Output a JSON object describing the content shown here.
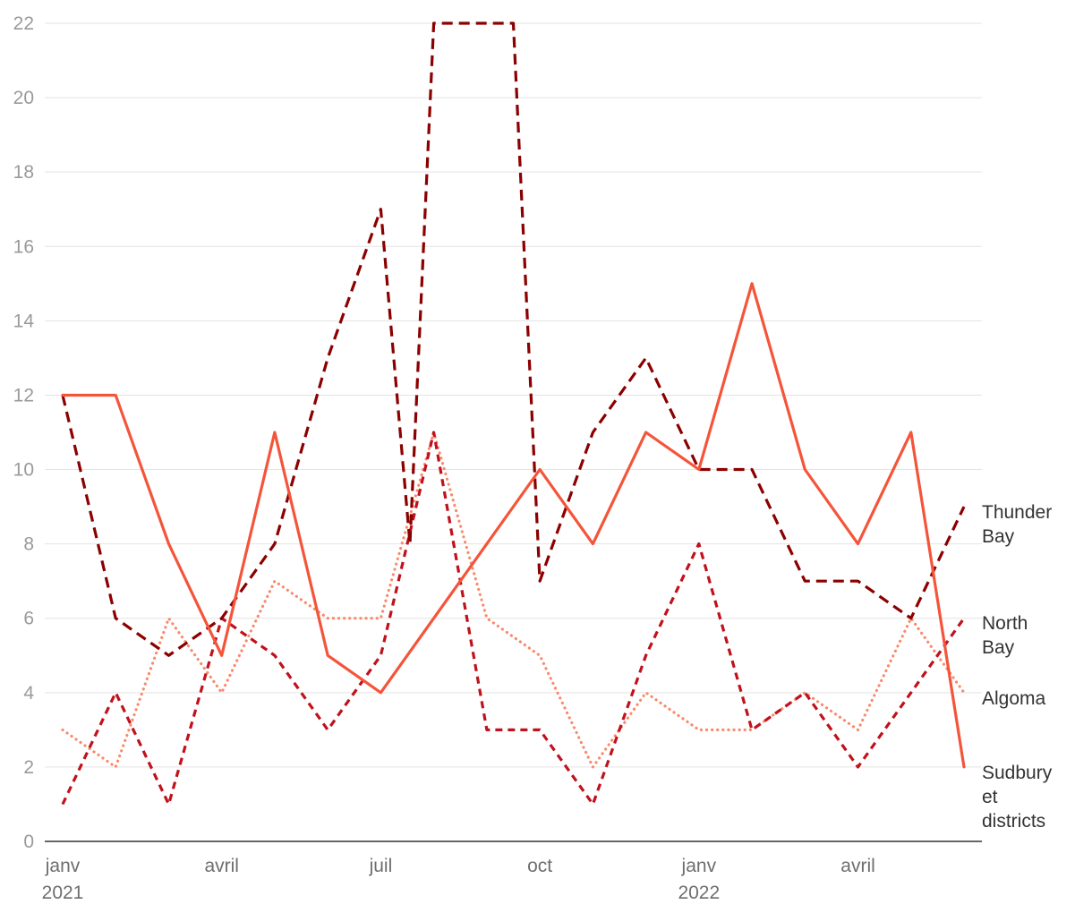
{
  "chart_data": {
    "type": "line",
    "title": "",
    "xlabel": "",
    "ylabel": "",
    "ylim": [
      0,
      22
    ],
    "yticks": [
      0,
      2,
      4,
      6,
      8,
      10,
      12,
      14,
      16,
      18,
      20,
      22
    ],
    "grid": true,
    "x": [
      "2021-01",
      "2021-02",
      "2021-03",
      "2021-04",
      "2021-05",
      "2021-06",
      "2021-07",
      "2021-08",
      "2021-09",
      "2021-10",
      "2021-11",
      "2021-12",
      "2022-01",
      "2022-02",
      "2022-03",
      "2022-04",
      "2022-05",
      "2022-06"
    ],
    "xticks": [
      {
        "index": 0,
        "label": "janv",
        "year": "2021"
      },
      {
        "index": 3,
        "label": "avril",
        "year": ""
      },
      {
        "index": 6,
        "label": "juil",
        "year": ""
      },
      {
        "index": 9,
        "label": "oct",
        "year": ""
      },
      {
        "index": 12,
        "label": "janv",
        "year": "2022"
      },
      {
        "index": 15,
        "label": "avril",
        "year": ""
      }
    ],
    "series": [
      {
        "name": "Thunder Bay",
        "legend_lines": [
          "Thunder",
          "Bay"
        ],
        "color": "#8b0000",
        "style": "long-dash",
        "points": [
          [
            0,
            12
          ],
          [
            1,
            6
          ],
          [
            2,
            5
          ],
          [
            3,
            6
          ],
          [
            4,
            8
          ],
          [
            5,
            13
          ],
          [
            6,
            17
          ],
          [
            6.55,
            8
          ],
          [
            7,
            22
          ],
          [
            8.5,
            22
          ],
          [
            9,
            7
          ],
          [
            10,
            11
          ],
          [
            11,
            13
          ],
          [
            12,
            10
          ],
          [
            13,
            10
          ],
          [
            14,
            7
          ],
          [
            15,
            7
          ],
          [
            16,
            6
          ],
          [
            17,
            9
          ]
        ]
      },
      {
        "name": "North Bay",
        "legend_lines": [
          "North",
          "Bay"
        ],
        "color": "#c0111c",
        "style": "short-dash",
        "points": [
          [
            0,
            1
          ],
          [
            1,
            4
          ],
          [
            2,
            1
          ],
          [
            3,
            6
          ],
          [
            4,
            5
          ],
          [
            5,
            3
          ],
          [
            6,
            5
          ],
          [
            7,
            11
          ],
          [
            8,
            3
          ],
          [
            9,
            3
          ],
          [
            10,
            1
          ],
          [
            11,
            5
          ],
          [
            12,
            8
          ],
          [
            13,
            3
          ],
          [
            14,
            4
          ],
          [
            15,
            2
          ],
          [
            16,
            4
          ],
          [
            17,
            6
          ]
        ]
      },
      {
        "name": "Algoma",
        "legend_lines": [
          "Algoma"
        ],
        "color": "#f9896b",
        "style": "dotted",
        "points": [
          [
            0,
            3
          ],
          [
            1,
            2
          ],
          [
            2,
            6
          ],
          [
            3,
            4
          ],
          [
            4,
            7
          ],
          [
            5,
            6
          ],
          [
            6,
            6
          ],
          [
            7,
            11
          ],
          [
            8,
            6
          ],
          [
            9,
            5
          ],
          [
            10,
            2
          ],
          [
            11,
            4
          ],
          [
            12,
            3
          ],
          [
            13,
            3
          ],
          [
            14,
            4
          ],
          [
            15,
            3
          ],
          [
            16,
            6
          ],
          [
            17,
            4
          ]
        ]
      },
      {
        "name": "Sudbury et districts",
        "legend_lines": [
          "Sudbury",
          "et",
          "districts"
        ],
        "color": "#f4553a",
        "style": "solid",
        "points": [
          [
            0,
            12
          ],
          [
            1,
            12
          ],
          [
            2,
            8
          ],
          [
            3,
            5
          ],
          [
            4,
            11
          ],
          [
            5,
            5
          ],
          [
            6,
            4
          ],
          [
            9,
            10
          ],
          [
            10,
            8
          ],
          [
            11,
            11
          ],
          [
            12,
            10
          ],
          [
            13,
            15
          ],
          [
            14,
            10
          ],
          [
            15,
            8
          ],
          [
            16,
            11
          ],
          [
            17,
            2
          ]
        ]
      }
    ]
  }
}
